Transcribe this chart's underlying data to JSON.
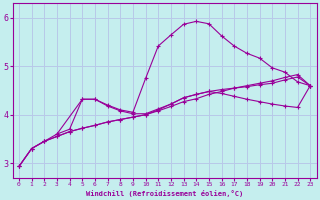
{
  "xlabel": "Windchill (Refroidissement éolien,°C)",
  "bg_color": "#c5eeee",
  "grid_color": "#b8c8e8",
  "line_color": "#990099",
  "xlim": [
    -0.5,
    23.5
  ],
  "ylim": [
    2.7,
    6.3
  ],
  "xticks": [
    0,
    1,
    2,
    3,
    4,
    5,
    6,
    7,
    8,
    9,
    10,
    11,
    12,
    13,
    14,
    15,
    16,
    17,
    18,
    19,
    20,
    21,
    22,
    23
  ],
  "yticks": [
    3,
    4,
    5,
    6
  ],
  "line1_x": [
    0,
    1,
    2,
    3,
    4,
    5,
    6,
    7,
    8,
    9,
    10,
    11,
    12,
    13,
    14,
    15,
    16,
    17,
    18,
    19,
    20,
    21,
    22,
    23
  ],
  "line1_y": [
    2.93,
    3.3,
    3.45,
    3.55,
    3.65,
    3.72,
    3.78,
    3.85,
    3.9,
    3.95,
    4.0,
    4.08,
    4.17,
    4.27,
    4.33,
    4.42,
    4.48,
    4.55,
    4.6,
    4.65,
    4.7,
    4.77,
    4.83,
    4.6
  ],
  "line2_x": [
    0,
    1,
    2,
    3,
    4,
    5,
    6,
    7,
    8,
    9,
    10,
    11,
    12,
    13,
    14,
    15,
    16,
    17,
    18,
    19,
    20,
    21,
    22,
    23
  ],
  "line2_y": [
    2.93,
    3.3,
    3.45,
    3.55,
    3.65,
    3.72,
    3.78,
    3.85,
    3.9,
    3.95,
    4.0,
    4.1,
    4.22,
    4.35,
    4.42,
    4.48,
    4.44,
    4.38,
    4.32,
    4.27,
    4.22,
    4.18,
    4.15,
    4.6
  ],
  "line3_x": [
    0,
    1,
    2,
    3,
    4,
    5,
    6,
    7,
    8,
    9,
    10,
    11,
    12,
    13,
    14,
    15,
    16,
    17,
    18,
    19,
    20,
    21,
    22,
    23
  ],
  "line3_y": [
    2.93,
    3.3,
    3.45,
    3.6,
    3.7,
    4.32,
    4.32,
    4.2,
    4.1,
    4.05,
    4.75,
    5.42,
    5.65,
    5.87,
    5.93,
    5.88,
    5.63,
    5.42,
    5.27,
    5.17,
    4.97,
    4.88,
    4.68,
    4.6
  ],
  "line4_x": [
    3,
    5,
    6,
    7,
    8,
    9,
    10,
    11,
    12,
    13,
    14,
    15,
    16,
    17,
    18,
    19,
    20,
    21,
    22,
    23
  ],
  "line4_y": [
    3.6,
    4.32,
    4.32,
    4.18,
    4.08,
    4.02,
    4.02,
    4.12,
    4.22,
    4.35,
    4.42,
    4.48,
    4.52,
    4.55,
    4.58,
    4.62,
    4.65,
    4.72,
    4.78,
    4.6
  ]
}
